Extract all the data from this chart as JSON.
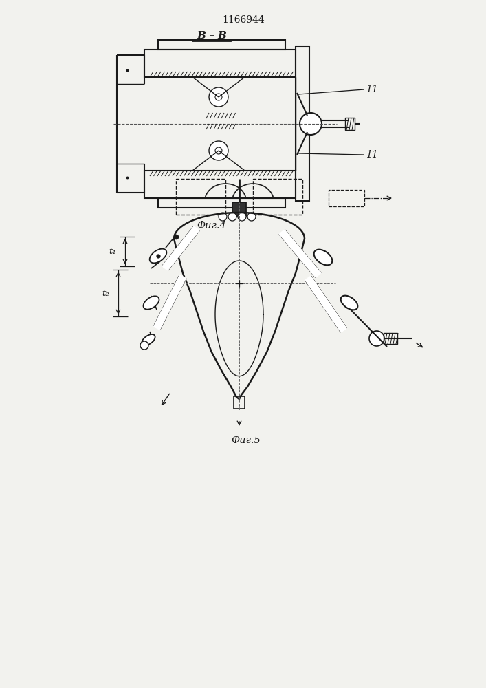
{
  "title": "1166944",
  "fig4_label": "Фиг.4",
  "fig5_label": "Фиг.5",
  "section_label": "B – B",
  "label_11a": "11",
  "label_11b": "11",
  "label_t1": "t₁",
  "label_t2": "t₂",
  "bg_color": "#f2f2ee",
  "line_color": "#1a1a1a"
}
